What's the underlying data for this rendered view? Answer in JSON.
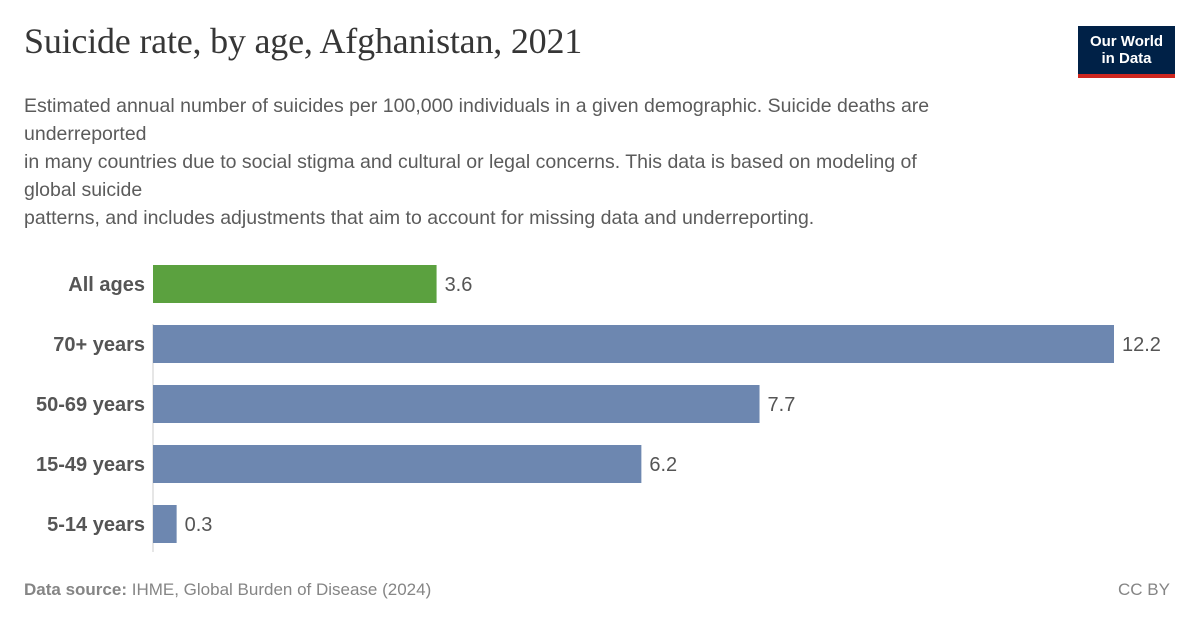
{
  "header": {
    "title": "Suicide rate, by age, Afghanistan, 2021",
    "subtitle_lines": [
      "Estimated annual number of suicides per 100,000 individuals in a given demographic. Suicide deaths are",
      "underreported",
      "in many countries due to social stigma and cultural or legal concerns. This data is based on modeling of",
      "global suicide",
      "patterns, and includes adjustments that aim to account for missing data and underreporting."
    ]
  },
  "logo": {
    "line1": "Our World",
    "line2": "in Data"
  },
  "footer": {
    "source_label": "Data source:",
    "source_text": "IHME, Global Burden of Disease (2024)",
    "license": "CC BY"
  },
  "colors": {
    "highlight": "#5ba13f",
    "default": "#6d87b0",
    "axis": "#cccccc"
  },
  "chart_data": {
    "type": "bar",
    "orientation": "horizontal",
    "categories": [
      "All ages",
      "70+ years",
      "50-69 years",
      "15-49 years",
      "5-14 years"
    ],
    "values": [
      3.6,
      12.2,
      7.7,
      6.2,
      0.3
    ],
    "value_labels": [
      "3.6",
      "12.2",
      "7.7",
      "6.2",
      "0.3"
    ],
    "highlighted_category": "All ages",
    "xlim": [
      0,
      12.2
    ],
    "grid": false
  }
}
